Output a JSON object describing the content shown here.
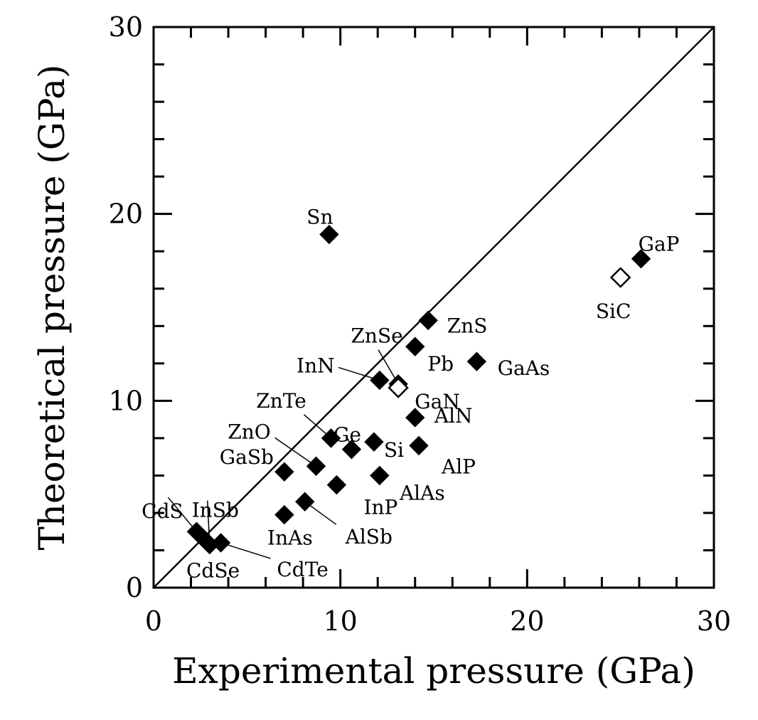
{
  "chart_data": {
    "type": "scatter",
    "xlabel": "Experimental pressure (GPa)",
    "ylabel": "Theoretical pressure (GPa)",
    "xlim": [
      0,
      30
    ],
    "ylim": [
      0,
      30
    ],
    "x_ticks": [
      0,
      10,
      20,
      30
    ],
    "y_ticks": [
      0,
      10,
      20,
      30
    ],
    "reference_line": "y = x",
    "grid": false,
    "legend": "none",
    "marker": "diamond",
    "points": [
      {
        "label": "CdS",
        "x": 2.3,
        "y": 3.0,
        "filled": true
      },
      {
        "label": "InSb",
        "x": 3.0,
        "y": 2.3,
        "filled": true
      },
      {
        "label": "CdSe",
        "x": 2.8,
        "y": 2.5,
        "filled": true
      },
      {
        "label": "CdTe",
        "x": 3.6,
        "y": 2.4,
        "filled": true
      },
      {
        "label": "InAs",
        "x": 7.0,
        "y": 3.9,
        "filled": true
      },
      {
        "label": "AlSb",
        "x": 8.1,
        "y": 4.6,
        "filled": true
      },
      {
        "label": "GaSb",
        "x": 7.0,
        "y": 6.2,
        "filled": true
      },
      {
        "label": "ZnO",
        "x": 8.7,
        "y": 6.5,
        "filled": true
      },
      {
        "label": "InP",
        "x": 9.8,
        "y": 5.5,
        "filled": true
      },
      {
        "label": "ZnTe",
        "x": 9.5,
        "y": 8.0,
        "filled": true
      },
      {
        "label": "Ge",
        "x": 10.6,
        "y": 7.4,
        "filled": true
      },
      {
        "label": "Si",
        "x": 11.8,
        "y": 7.8,
        "filled": true
      },
      {
        "label": "AlAs",
        "x": 12.1,
        "y": 6.0,
        "filled": true
      },
      {
        "label": "InN",
        "x": 12.1,
        "y": 11.1,
        "filled": true
      },
      {
        "label": "ZnSe",
        "x": 13.1,
        "y": 10.9,
        "filled": true
      },
      {
        "label": "GaN",
        "x": 13.1,
        "y": 10.7,
        "filled": false
      },
      {
        "label": "Pb",
        "x": 14.0,
        "y": 12.9,
        "filled": true
      },
      {
        "label": "ZnS",
        "x": 14.7,
        "y": 14.3,
        "filled": true
      },
      {
        "label": "AlN",
        "x": 14.0,
        "y": 9.1,
        "filled": true
      },
      {
        "label": "AlP",
        "x": 14.2,
        "y": 7.6,
        "filled": true
      },
      {
        "label": "GaAs",
        "x": 17.3,
        "y": 12.1,
        "filled": true
      },
      {
        "label": "Sn",
        "x": 9.4,
        "y": 18.9,
        "filled": true
      },
      {
        "label": "GaP",
        "x": 26.1,
        "y": 17.6,
        "filled": true
      },
      {
        "label": "SiC",
        "x": 25.0,
        "y": 16.6,
        "filled": false
      }
    ]
  }
}
